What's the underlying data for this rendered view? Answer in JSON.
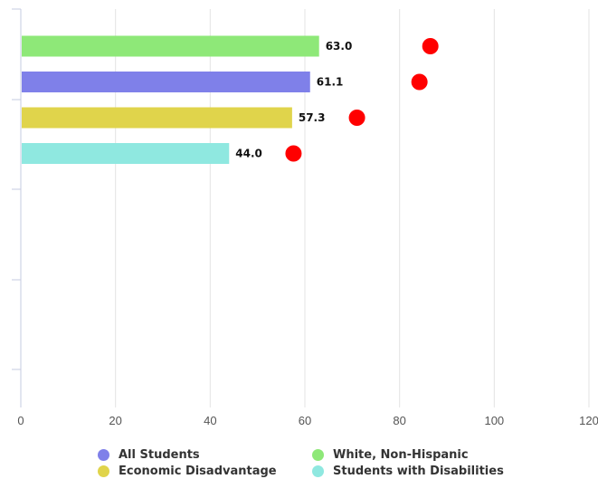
{
  "chart_data": {
    "type": "bar",
    "orientation": "horizontal",
    "xlim": [
      0,
      120
    ],
    "x_ticks": [
      "0",
      "20",
      "40",
      "60",
      "80",
      "100",
      "120"
    ],
    "grid": true,
    "legend_position": "bottom",
    "bars": [
      {
        "series": "White, Non-Hispanic",
        "value": 63.0,
        "label": "63.0",
        "color": "#8ee878",
        "target": 86.5
      },
      {
        "series": "All Students",
        "value": 61.1,
        "label": "61.1",
        "color": "#7f80e9",
        "target": 84.2
      },
      {
        "series": "Economic Disadvantage",
        "value": 57.3,
        "label": "57.3",
        "color": "#e0d44b",
        "target": 71.0
      },
      {
        "series": "Students with Disabilities",
        "value": 44.0,
        "label": "44.0",
        "color": "#8fe8e0",
        "target": 57.6
      }
    ],
    "target_color": "#ff0000"
  },
  "legend": [
    {
      "label": "All Students",
      "color": "#7f80e9"
    },
    {
      "label": "White, Non-Hispanic",
      "color": "#8ee878"
    },
    {
      "label": "Economic Disadvantage",
      "color": "#e0d44b"
    },
    {
      "label": "Students with Disabilities",
      "color": "#8fe8e0"
    }
  ]
}
